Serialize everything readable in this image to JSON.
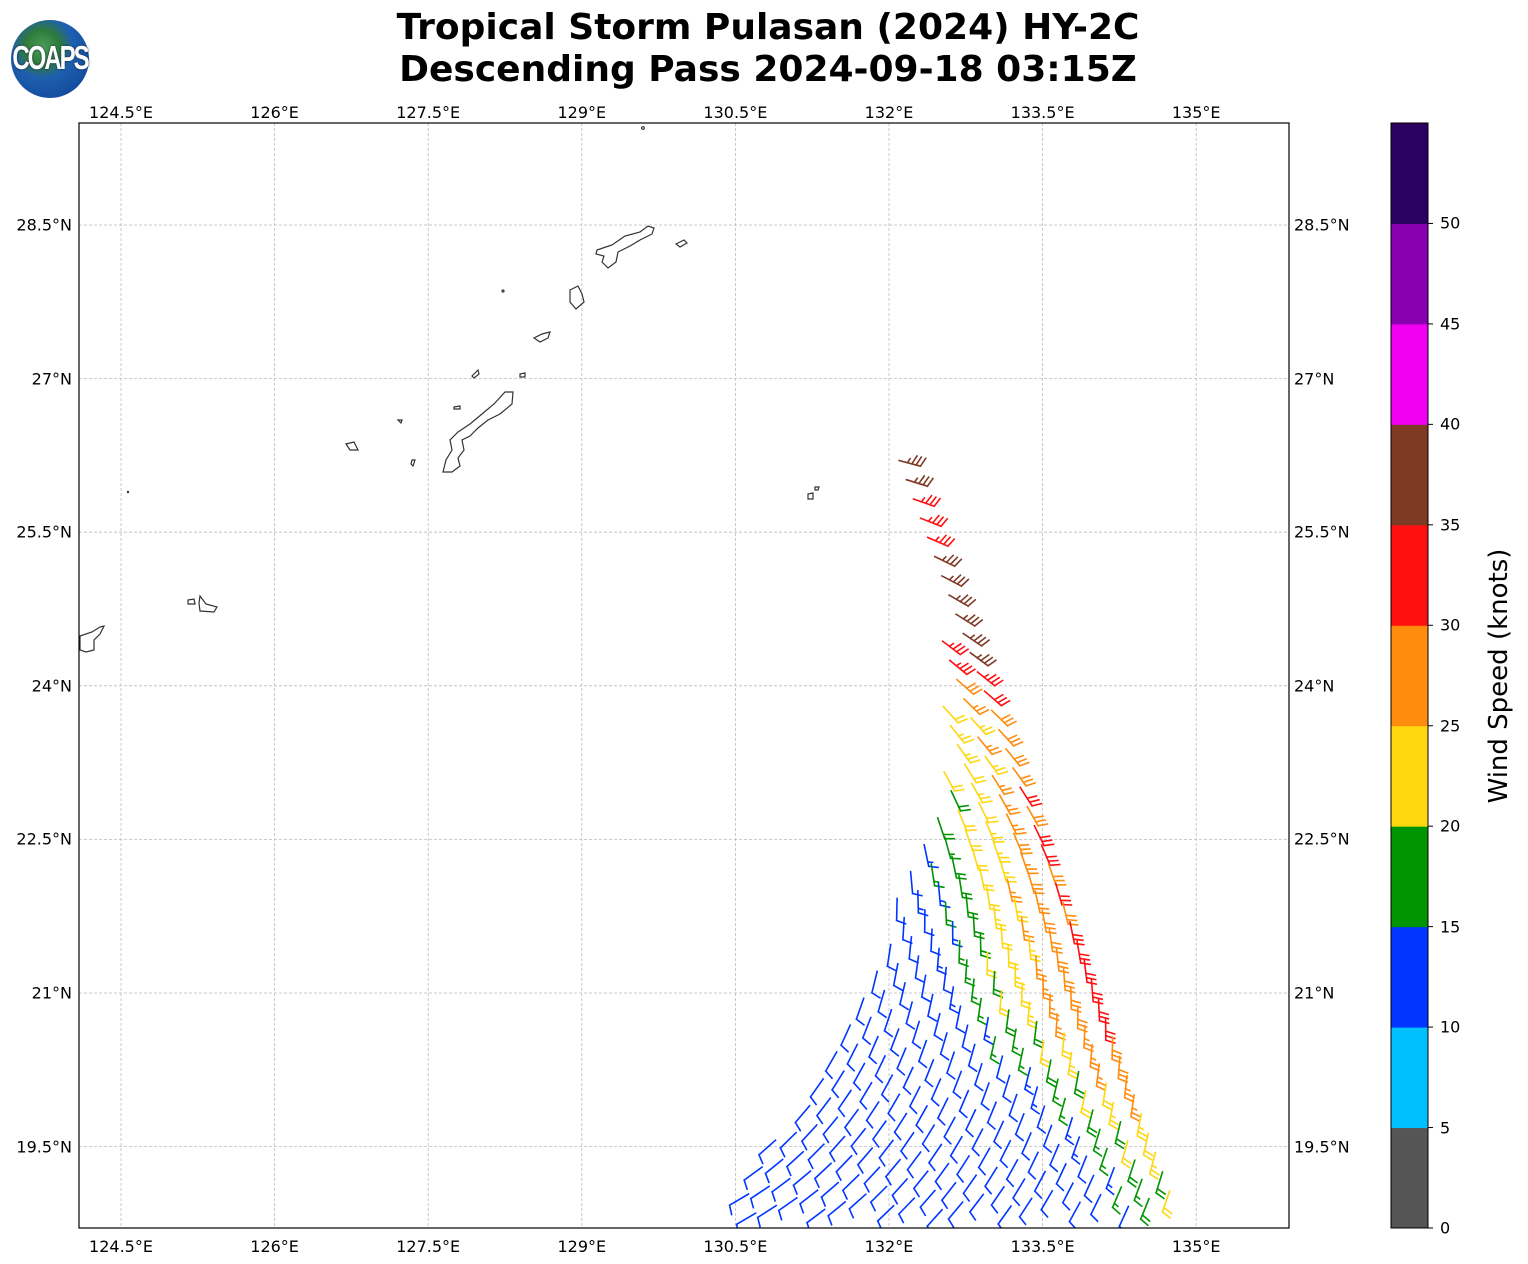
{
  "header": {
    "title_line1": "Tropical Storm Pulasan (2024) HY-2C",
    "title_line2": "Descending Pass 2024-09-18 03:15Z",
    "logo_text": "COAPS"
  },
  "map": {
    "lon_ticks": [
      {
        "value": 124.5,
        "label": "124.5°E"
      },
      {
        "value": 126,
        "label": "126°E"
      },
      {
        "value": 127.5,
        "label": "127.5°E"
      },
      {
        "value": 129,
        "label": "129°E"
      },
      {
        "value": 130.5,
        "label": "130.5°E"
      },
      {
        "value": 132,
        "label": "132°E"
      },
      {
        "value": 133.5,
        "label": "133.5°E"
      },
      {
        "value": 135,
        "label": "135°E"
      }
    ],
    "lat_ticks": [
      {
        "value": 28.5,
        "label": "28.5°N"
      },
      {
        "value": 27,
        "label": "27°N"
      },
      {
        "value": 25.5,
        "label": "25.5°N"
      },
      {
        "value": 24,
        "label": "24°N"
      },
      {
        "value": 22.5,
        "label": "22.5°N"
      },
      {
        "value": 21,
        "label": "21°N"
      },
      {
        "value": 19.5,
        "label": "19.5°N"
      }
    ],
    "extent": {
      "lon_min": 124.085,
      "lon_max": 135.9,
      "lat_min": 18.3,
      "lat_max": 29.5
    }
  },
  "colorbar": {
    "label": "Wind Speed (knots)",
    "ticks": [
      "0",
      "5",
      "10",
      "15",
      "20",
      "25",
      "30",
      "35",
      "40",
      "45",
      "50"
    ],
    "bins": [
      {
        "min": 0,
        "max": 5,
        "color": "#555555"
      },
      {
        "min": 5,
        "max": 10,
        "color": "#00bfff"
      },
      {
        "min": 10,
        "max": 15,
        "color": "#0036ff"
      },
      {
        "min": 15,
        "max": 20,
        "color": "#009400"
      },
      {
        "min": 20,
        "max": 25,
        "color": "#ffd70f"
      },
      {
        "min": 25,
        "max": 30,
        "color": "#ff8c0c"
      },
      {
        "min": 30,
        "max": 35,
        "color": "#ff0f0f"
      },
      {
        "min": 35,
        "max": 40,
        "color": "#7f3a26"
      },
      {
        "min": 40,
        "max": 45,
        "color": "#f000f0"
      },
      {
        "min": 45,
        "max": 50,
        "color": "#8800b0"
      },
      {
        "min": 50,
        "max": 55,
        "color": "#2a0060"
      }
    ]
  },
  "swath": {
    "right_edge": [
      {
        "lat": 26.2,
        "lon": 132.1
      },
      {
        "lat": 18.5,
        "lon": 134.95
      }
    ],
    "left_edge": [
      {
        "lat": 24.55,
        "lon": 132.45
      },
      {
        "lat": 23.8,
        "lon": 132.5
      },
      {
        "lat": 22.8,
        "lon": 132.45
      },
      {
        "lat": 21.5,
        "lon": 131.9
      },
      {
        "lat": 20.0,
        "lon": 131.15
      },
      {
        "lat": 18.5,
        "lon": 130.2
      }
    ],
    "peak_speed_kt": [
      {
        "lat": 26.2,
        "speed": 37
      },
      {
        "lat": 25.6,
        "speed": 33
      },
      {
        "lat": 25.2,
        "speed": 37
      },
      {
        "lat": 24.2,
        "speed": 36
      },
      {
        "lat": 23.8,
        "speed": 28
      },
      {
        "lat": 22.0,
        "speed": 31
      },
      {
        "lat": 21.0,
        "speed": 32
      },
      {
        "lat": 20.2,
        "speed": 27
      },
      {
        "lat": 19.5,
        "speed": 22
      },
      {
        "lat": 18.5,
        "speed": 18
      }
    ],
    "speed_drop_kt_per_cell": 3.1,
    "min_speed_kt": 11,
    "wind_from_deg": [
      {
        "lat": 26.2,
        "deg": 105
      },
      {
        "lat": 24,
        "deg": 130
      },
      {
        "lat": 22,
        "deg": 165
      },
      {
        "lat": 19,
        "deg": 200
      }
    ]
  }
}
